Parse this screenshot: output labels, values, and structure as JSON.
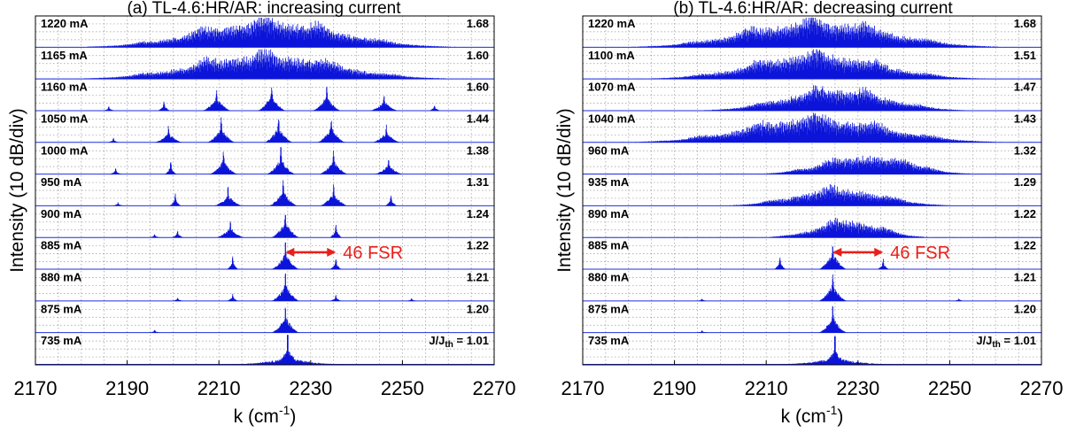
{
  "chart_data": [
    {
      "type": "line",
      "title": "(a) TL-4.6:HR/AR: increasing current",
      "xlabel": "k (cm",
      "xlabel_sup": "-1",
      "xlabel_end": ")",
      "ylabel": "Intensity (10 dB/div)",
      "xlim": [
        2170,
        2270
      ],
      "xticks": [
        "2170",
        "2190",
        "2210",
        "2230",
        "2250",
        "2270"
      ],
      "grid": true,
      "annotation": {
        "text": "46 FSR",
        "x_start": 2224.5,
        "x_end": 2235.5,
        "trace_index": 7
      },
      "traces": [
        {
          "current": "1220 mA",
          "ratio": "1.68",
          "kind": "broad",
          "center": 2221,
          "width": 22,
          "amp": 0.85,
          "peaks": [
            2193,
            2206,
            2220,
            2232,
            2246
          ]
        },
        {
          "current": "1165 mA",
          "ratio": "1.60",
          "kind": "broad",
          "center": 2220,
          "width": 22,
          "amp": 0.8,
          "peaks": [
            2193,
            2207,
            2220,
            2234,
            2248
          ]
        },
        {
          "current": "1160 mA",
          "ratio": "1.60",
          "kind": "modes",
          "peaks": [
            {
              "x": 2198,
              "h": 0.35
            },
            {
              "x": 2209.5,
              "h": 0.8
            },
            {
              "x": 2221.5,
              "h": 0.95
            },
            {
              "x": 2233.5,
              "h": 0.9
            },
            {
              "x": 2246,
              "h": 0.55
            },
            {
              "x": 2186,
              "h": 0.15
            },
            {
              "x": 2257,
              "h": 0.2
            }
          ]
        },
        {
          "current": "1050 mA",
          "ratio": "1.44",
          "kind": "modes",
          "peaks": [
            {
              "x": 2199,
              "h": 0.55
            },
            {
              "x": 2210.5,
              "h": 0.85
            },
            {
              "x": 2223,
              "h": 0.95
            },
            {
              "x": 2234.5,
              "h": 0.9
            },
            {
              "x": 2246.5,
              "h": 0.6
            },
            {
              "x": 2187,
              "h": 0.15
            }
          ]
        },
        {
          "current": "1000 mA",
          "ratio": "1.38",
          "kind": "modes",
          "peaks": [
            {
              "x": 2199.5,
              "h": 0.45
            },
            {
              "x": 2211,
              "h": 0.8
            },
            {
              "x": 2223.5,
              "h": 0.95
            },
            {
              "x": 2235,
              "h": 0.85
            },
            {
              "x": 2247,
              "h": 0.55
            },
            {
              "x": 2187.5,
              "h": 0.2
            }
          ]
        },
        {
          "current": "950 mA",
          "ratio": "1.31",
          "kind": "modes",
          "peaks": [
            {
              "x": 2200.5,
              "h": 0.4
            },
            {
              "x": 2212,
              "h": 0.65
            },
            {
              "x": 2224,
              "h": 0.95
            },
            {
              "x": 2235,
              "h": 0.75
            },
            {
              "x": 2247.5,
              "h": 0.4
            },
            {
              "x": 2188,
              "h": 0.12
            }
          ]
        },
        {
          "current": "900 mA",
          "ratio": "1.24",
          "kind": "modes",
          "peaks": [
            {
              "x": 2201,
              "h": 0.25
            },
            {
              "x": 2212.5,
              "h": 0.6
            },
            {
              "x": 2224.5,
              "h": 0.98
            },
            {
              "x": 2235.5,
              "h": 0.5
            },
            {
              "x": 2196,
              "h": 0.12
            }
          ]
        },
        {
          "current": "885 mA",
          "ratio": "1.22",
          "kind": "modes",
          "peaks": [
            {
              "x": 2213,
              "h": 0.45
            },
            {
              "x": 2224.5,
              "h": 0.98
            },
            {
              "x": 2235.5,
              "h": 0.4
            }
          ]
        },
        {
          "current": "880 mA",
          "ratio": "1.21",
          "kind": "modes",
          "peaks": [
            {
              "x": 2224.5,
              "h": 0.98
            },
            {
              "x": 2213,
              "h": 0.25
            },
            {
              "x": 2235.5,
              "h": 0.2
            },
            {
              "x": 2201,
              "h": 0.12
            },
            {
              "x": 2252,
              "h": 0.1
            }
          ]
        },
        {
          "current": "875 mA",
          "ratio": "1.20",
          "kind": "modes",
          "peaks": [
            {
              "x": 2224.5,
              "h": 0.98
            },
            {
              "x": 2196,
              "h": 0.1
            }
          ]
        },
        {
          "current": "735 mA",
          "ratio": "1.01",
          "ratio_prefix": "J/J",
          "ratio_sub": "th",
          "ratio_mid": " = ",
          "kind": "single",
          "peaks": [
            {
              "x": 2225,
              "h": 0.95
            }
          ]
        }
      ]
    },
    {
      "type": "line",
      "title": "(b) TL-4.6:HR/AR: decreasing current",
      "xlabel": "k (cm",
      "xlabel_sup": "-1",
      "xlabel_end": ")",
      "ylabel": "Intensity (10 dB/div)",
      "xlim": [
        2170,
        2270
      ],
      "xticks": [
        "2170",
        "2190",
        "2210",
        "2230",
        "2250",
        "2270"
      ],
      "grid": true,
      "annotation": {
        "text": "46 FSR",
        "x_start": 2224.5,
        "x_end": 2235.5,
        "trace_index": 7
      },
      "traces": [
        {
          "current": "1220 mA",
          "ratio": "1.68",
          "kind": "broad",
          "center": 2221,
          "width": 22,
          "amp": 0.85,
          "peaks": [
            2193,
            2206,
            2220,
            2232,
            2246
          ]
        },
        {
          "current": "1100 mA",
          "ratio": "1.51",
          "kind": "broad",
          "center": 2221,
          "width": 20,
          "amp": 0.8,
          "peaks": [
            2195,
            2208,
            2221,
            2234,
            2246
          ]
        },
        {
          "current": "1070 mA",
          "ratio": "1.47",
          "kind": "broad",
          "center": 2225,
          "width": 16,
          "amp": 0.7,
          "peaks": [
            2208,
            2221,
            2232,
            2244
          ]
        },
        {
          "current": "1040 mA",
          "ratio": "1.43",
          "kind": "broad",
          "center": 2221,
          "width": 22,
          "amp": 0.8,
          "peaks": [
            2195,
            2208,
            2221,
            2234,
            2246
          ]
        },
        {
          "current": "960 mA",
          "ratio": "1.32",
          "kind": "broad",
          "center": 2232,
          "width": 13,
          "amp": 0.6,
          "peaks": [
            2216,
            2224,
            2240,
            2246
          ]
        },
        {
          "current": "935 mA",
          "ratio": "1.29",
          "kind": "broad",
          "center": 2226,
          "width": 14,
          "amp": 0.55,
          "peaks": [
            2210,
            2224,
            2238
          ]
        },
        {
          "current": "890 mA",
          "ratio": "1.22",
          "kind": "broad",
          "center": 2228,
          "width": 10,
          "amp": 0.55,
          "peaks": [
            2213,
            2224.5,
            2237
          ]
        },
        {
          "current": "885 mA",
          "ratio": "1.22",
          "kind": "modes",
          "peaks": [
            {
              "x": 2213,
              "h": 0.45
            },
            {
              "x": 2224.5,
              "h": 0.98
            },
            {
              "x": 2235.5,
              "h": 0.35
            }
          ]
        },
        {
          "current": "880 mA",
          "ratio": "1.21",
          "kind": "modes",
          "peaks": [
            {
              "x": 2224.5,
              "h": 0.98
            },
            {
              "x": 2196,
              "h": 0.08
            },
            {
              "x": 2252,
              "h": 0.08
            }
          ]
        },
        {
          "current": "875 mA",
          "ratio": "1.20",
          "kind": "modes",
          "peaks": [
            {
              "x": 2224.5,
              "h": 0.98
            },
            {
              "x": 2196,
              "h": 0.08
            }
          ]
        },
        {
          "current": "735 mA",
          "ratio": "1.01",
          "ratio_prefix": "J/J",
          "ratio_sub": "th",
          "ratio_mid": " = ",
          "kind": "single",
          "peaks": [
            {
              "x": 2225,
              "h": 0.9
            }
          ]
        }
      ]
    }
  ]
}
